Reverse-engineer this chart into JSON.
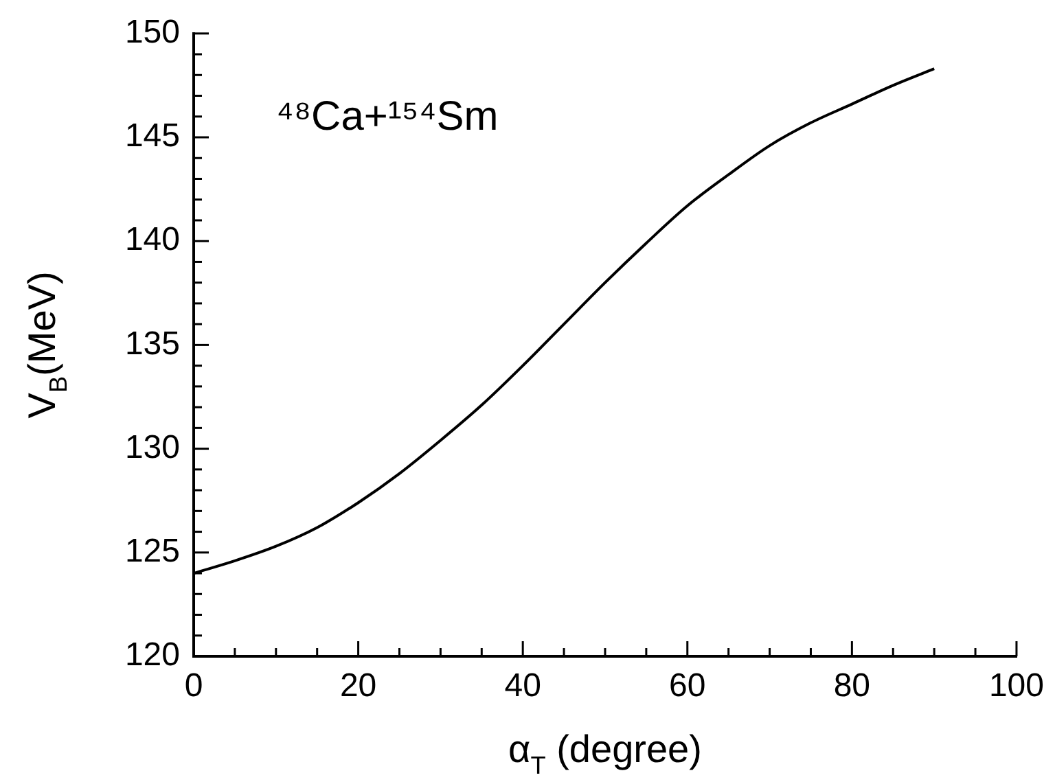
{
  "chart_data": {
    "type": "line",
    "xlabel": "α$_{T}$ (degree)",
    "ylabel": "V$_{B}$(MeV)",
    "annotations": [
      "⁴⁸Ca+¹⁵⁴Sm"
    ],
    "x": [
      0,
      5,
      10,
      15,
      20,
      25,
      30,
      35,
      40,
      45,
      50,
      55,
      60,
      65,
      70,
      75,
      80,
      85,
      90
    ],
    "series": [
      {
        "color": "#000000",
        "values": [
          124.0,
          124.6,
          125.3,
          126.2,
          127.4,
          128.8,
          130.4,
          132.1,
          134.0,
          136.0,
          138.0,
          139.9,
          141.7,
          143.2,
          144.6,
          145.7,
          146.6,
          147.5,
          148.3
        ]
      }
    ],
    "xlim": [
      0,
      100
    ],
    "xticks": [
      0,
      {
        "value": 5,
        "label": null
      },
      {
        "value": 10,
        "label": null
      },
      {
        "value": 15,
        "label": null
      },
      20,
      {
        "value": 25,
        "label": null
      },
      {
        "value": 30,
        "label": null
      },
      {
        "value": 35,
        "label": null
      },
      40,
      {
        "value": 45,
        "label": null
      },
      {
        "value": 50,
        "label": null
      },
      {
        "value": 55,
        "label": null
      },
      60,
      {
        "value": 65,
        "label": null
      },
      {
        "value": 70,
        "label": null
      },
      {
        "value": 75,
        "label": null
      },
      80,
      {
        "value": 85,
        "label": null
      },
      {
        "value": 90,
        "label": null
      },
      {
        "value": 95,
        "label": null
      },
      100
    ],
    "ylim": [
      120,
      150
    ],
    "yticks": [
      120,
      {
        "value": 121,
        "label": null
      },
      {
        "value": 122,
        "label": null
      },
      {
        "value": 123,
        "label": null
      },
      {
        "value": 124,
        "label": null
      },
      125,
      {
        "value": 126,
        "label": null
      },
      {
        "value": 127,
        "label": null
      },
      {
        "value": 128,
        "label": null
      },
      {
        "value": 129,
        "label": null
      },
      130,
      {
        "value": 131,
        "label": null
      },
      {
        "value": 132,
        "label": null
      },
      {
        "value": 133,
        "label": null
      },
      {
        "value": 134,
        "label": null
      },
      135,
      {
        "value": 136,
        "label": null
      },
      {
        "value": 137,
        "label": null
      },
      {
        "value": 138,
        "label": null
      },
      {
        "value": 139,
        "label": null
      },
      140,
      {
        "value": 141,
        "label": null
      },
      {
        "value": 142,
        "label": null
      },
      {
        "value": 143,
        "label": null
      },
      {
        "value": 144,
        "label": null
      },
      145,
      {
        "value": 146,
        "label": null
      },
      {
        "value": 147,
        "label": null
      },
      {
        "value": 148,
        "label": null
      },
      {
        "value": 149,
        "label": null
      },
      150
    ],
    "grid": false,
    "legend": false,
    "marker": "none",
    "line_style": "solid"
  }
}
